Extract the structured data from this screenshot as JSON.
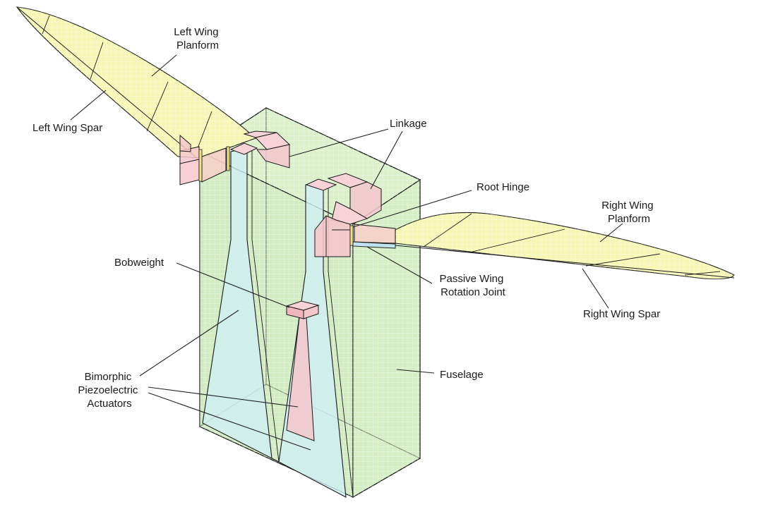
{
  "diagram": {
    "labels": {
      "left_wing_planform": [
        "Left Wing",
        "Planform"
      ],
      "left_wing_spar": "Left Wing Spar",
      "linkage": "Linkage",
      "root_hinge": "Root Hinge",
      "right_wing_planform": [
        "Right Wing",
        "Planform"
      ],
      "passive_wing_rotation_joint": [
        "Passive Wing",
        "Rotation Joint"
      ],
      "right_wing_spar": "Right Wing Spar",
      "bobweight": "Bobweight",
      "fuselage": "Fuselage",
      "bimorphic_piezoelectric_actuators": [
        "Bimorphic",
        "Piezoelectric",
        "Actuators"
      ]
    },
    "colors": {
      "wing_fill": "#f6f7b4",
      "fuselage_fill": "#d6efc6",
      "actuator_fill": "#cfeff4",
      "linkage_fill": "#f4c6cc",
      "outline": "#1a1a1a"
    }
  }
}
